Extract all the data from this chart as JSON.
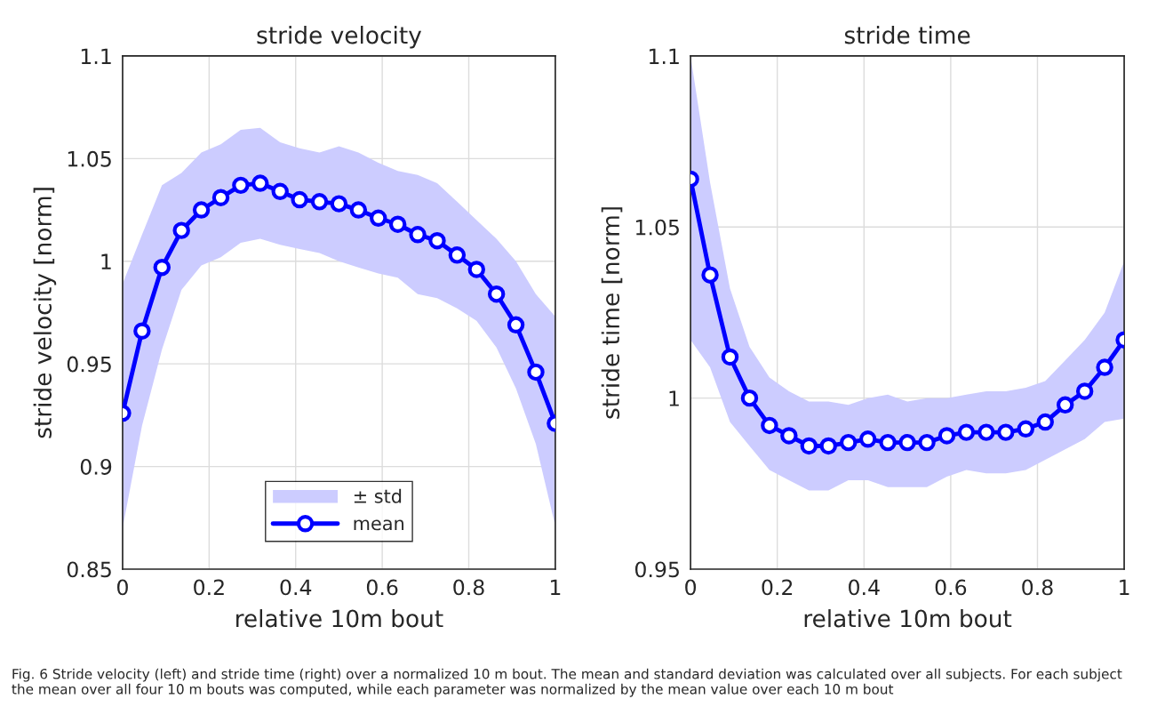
{
  "chart_data": [
    {
      "type": "line",
      "title": "stride velocity",
      "xlabel": "relative 10m bout",
      "ylabel": "stride velocity [norm]",
      "x": [
        0,
        0.045,
        0.091,
        0.136,
        0.182,
        0.227,
        0.273,
        0.318,
        0.364,
        0.409,
        0.455,
        0.5,
        0.545,
        0.591,
        0.636,
        0.682,
        0.727,
        0.773,
        0.818,
        0.864,
        0.909,
        0.955,
        1
      ],
      "series": [
        {
          "type": "area",
          "name": "± std",
          "color": "#ccccff",
          "values": [
            null,
            null,
            null,
            null,
            null,
            null,
            null,
            null,
            null,
            null,
            null,
            null,
            null,
            null,
            null,
            null,
            null,
            null,
            null,
            null,
            null,
            null,
            null
          ],
          "lower": [
            0.87,
            0.92,
            0.957,
            0.986,
            0.998,
            1.002,
            1.009,
            1.011,
            1.008,
            1.006,
            1.004,
            1.0,
            0.997,
            0.994,
            0.992,
            0.984,
            0.982,
            0.977,
            0.971,
            0.958,
            0.938,
            0.911,
            0.871
          ],
          "upper": [
            0.989,
            1.013,
            1.037,
            1.043,
            1.053,
            1.057,
            1.064,
            1.065,
            1.058,
            1.055,
            1.053,
            1.056,
            1.053,
            1.048,
            1.044,
            1.042,
            1.038,
            1.029,
            1.02,
            1.011,
            1.0,
            0.984,
            0.973
          ]
        },
        {
          "name": "mean",
          "color": "#0000ff",
          "marker": "circle",
          "values": [
            0.926,
            0.966,
            0.997,
            1.015,
            1.025,
            1.031,
            1.037,
            1.038,
            1.034,
            1.03,
            1.029,
            1.028,
            1.025,
            1.021,
            1.018,
            1.013,
            1.01,
            1.003,
            0.996,
            0.984,
            0.969,
            0.946,
            0.921
          ]
        }
      ],
      "xlim": [
        0,
        1
      ],
      "xticks": [
        0,
        0.2,
        0.4,
        0.6,
        0.8,
        1
      ],
      "ylim": [
        0.85,
        1.1
      ],
      "yticks": [
        0.85,
        0.9,
        0.95,
        1,
        1.05,
        1.1
      ],
      "grid": true,
      "legend": "bottom",
      "line_style": "solid",
      "annotations": [
        "Fig. 6 Stride velocity (left) and stride time (right) over a normalized 10 m bout. The mean and standard deviation was calculated over all subjects. For each subject the mean over all four 10 m bouts was computed, while each parameter was normalized by the mean value over each 10 m bout"
      ]
    },
    {
      "type": "line",
      "title": "stride time",
      "xlabel": "relative 10m bout",
      "ylabel": "stride time [norm]",
      "x": [
        0,
        0.045,
        0.091,
        0.136,
        0.182,
        0.227,
        0.273,
        0.318,
        0.364,
        0.409,
        0.455,
        0.5,
        0.545,
        0.591,
        0.636,
        0.682,
        0.727,
        0.773,
        0.818,
        0.864,
        0.909,
        0.955,
        1
      ],
      "series": [
        {
          "type": "area",
          "color": "#ccccff",
          "values": [
            null,
            null,
            null,
            null,
            null,
            null,
            null,
            null,
            null,
            null,
            null,
            null,
            null,
            null,
            null,
            null,
            null,
            null,
            null,
            null,
            null,
            null,
            null
          ],
          "lower": [
            1.017,
            1.009,
            0.993,
            0.986,
            0.979,
            0.976,
            0.973,
            0.973,
            0.976,
            0.976,
            0.974,
            0.974,
            0.974,
            0.977,
            0.979,
            0.978,
            0.978,
            0.979,
            0.982,
            0.985,
            0.988,
            0.993,
            0.994
          ],
          "upper": [
            1.1,
            1.063,
            1.032,
            1.015,
            1.006,
            1.002,
            0.999,
            0.999,
            0.998,
            1.0,
            1.001,
            0.999,
            1.0,
            1.0,
            1.001,
            1.002,
            1.002,
            1.003,
            1.005,
            1.011,
            1.017,
            1.025,
            1.04
          ]
        },
        {
          "color": "#0000ff",
          "marker": "circle",
          "values": [
            1.064,
            1.036,
            1.012,
            1.0,
            0.992,
            0.989,
            0.986,
            0.986,
            0.987,
            0.988,
            0.987,
            0.987,
            0.987,
            0.989,
            0.99,
            0.99,
            0.99,
            0.991,
            0.993,
            0.998,
            1.002,
            1.009,
            1.017
          ]
        }
      ],
      "xlim": [
        0,
        1
      ],
      "xticks": [
        0,
        0.2,
        0.4,
        0.6,
        0.8,
        1
      ],
      "ylim": [
        0.95,
        1.1
      ],
      "yticks": [
        0.95,
        1,
        1.05,
        1.1
      ],
      "grid": true,
      "line_style": "solid"
    }
  ]
}
